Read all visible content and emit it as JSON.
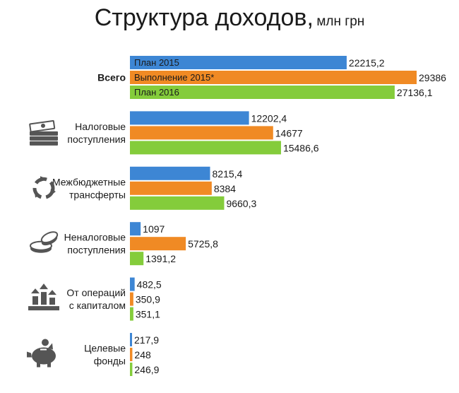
{
  "title": "Структура доходов,",
  "unit": "млн грн",
  "chart_data": {
    "type": "bar",
    "orientation": "horizontal",
    "title": "Структура доходов, млн грн",
    "categories": [
      "Всего",
      "Налоговые поступления",
      "Межбюджетные трансферты",
      "Неналоговые поступления",
      "От операций с капиталом",
      "Целевые фонды"
    ],
    "category_lines": [
      [
        "Всего"
      ],
      [
        "Налоговые",
        "поступления"
      ],
      [
        "Межбюджетные",
        "трансферты"
      ],
      [
        "Неналоговые",
        "поступления"
      ],
      [
        "От операций",
        "с капиталом"
      ],
      [
        "Целевые",
        "фонды"
      ]
    ],
    "category_icons": [
      "",
      "money-stack-icon",
      "recycle-icon",
      "coins-icon",
      "capital-growth-icon",
      "piggy-bank-icon"
    ],
    "series": [
      {
        "name": "План 2015",
        "color": "#3d86d4",
        "values": [
          22215.2,
          12202.4,
          8215.4,
          1097,
          482.5,
          217.9
        ],
        "labels": [
          "22215,2",
          "12202,4",
          "8215,4",
          "1097",
          "482,5",
          "217,9"
        ]
      },
      {
        "name": "Выполнение 2015*",
        "color": "#f08a24",
        "values": [
          29386,
          14677,
          8384,
          5725.8,
          350.9,
          248
        ],
        "labels": [
          "29386",
          "14677",
          "8384",
          "5725,8",
          "350,9",
          "248"
        ]
      },
      {
        "name": "План 2016",
        "color": "#84cc3b",
        "values": [
          27136.1,
          15486.6,
          9660.3,
          1391.2,
          351.1,
          246.9
        ],
        "labels": [
          "27136,1",
          "15486,6",
          "9660,3",
          "1391,2",
          "351,1",
          "246,9"
        ]
      }
    ],
    "legend_placement": "inside-first-group",
    "grid": false
  }
}
